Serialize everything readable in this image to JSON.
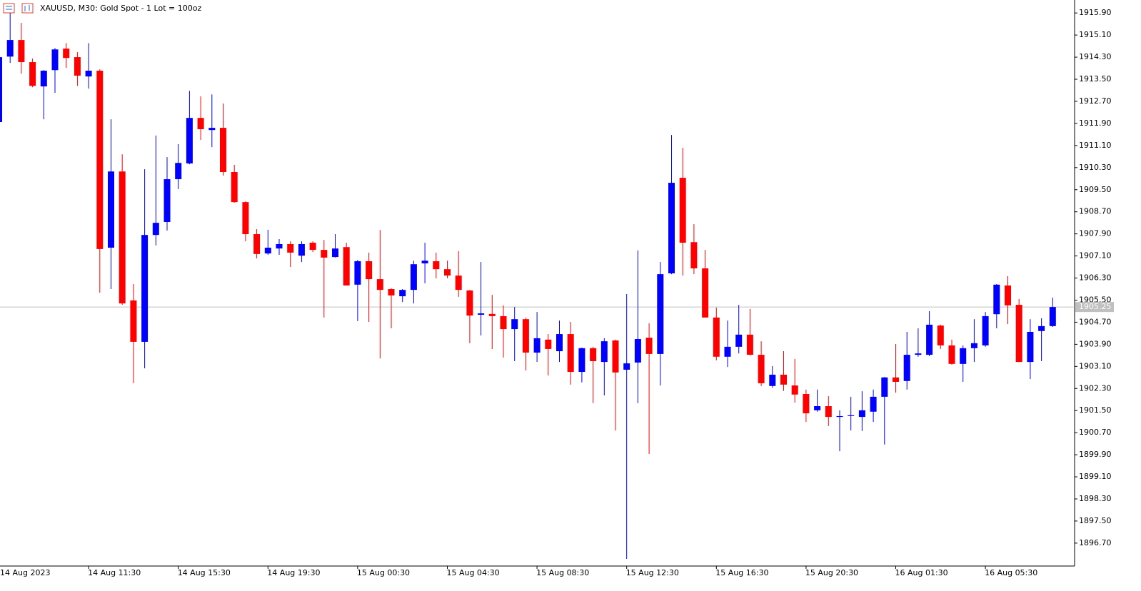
{
  "chart_data": {
    "type": "candlestick",
    "title": "XAUUSD, M30:  Gold Spot - 1 Lot = 100oz",
    "categories": [
      "14 Aug 2023",
      null,
      null,
      null,
      null,
      null,
      null,
      null,
      "14 Aug 11:30",
      null,
      null,
      null,
      null,
      null,
      null,
      null,
      "14 Aug 15:30",
      null,
      null,
      null,
      null,
      null,
      null,
      null,
      "14 Aug 19:30",
      null,
      null,
      null,
      null,
      null,
      null,
      null,
      "15 Aug 00:30",
      null,
      null,
      null,
      null,
      null,
      null,
      null,
      "15 Aug 04:30",
      null,
      null,
      null,
      null,
      null,
      null,
      null,
      "15 Aug 08:30",
      null,
      null,
      null,
      null,
      null,
      null,
      null,
      "15 Aug 12:30",
      null,
      null,
      null,
      null,
      null,
      null,
      null,
      "15 Aug 16:30",
      null,
      null,
      null,
      null,
      null,
      null,
      null,
      "15 Aug 20:30",
      null,
      null,
      null,
      null,
      null,
      null,
      null,
      "16 Aug 01:30",
      null,
      null,
      null,
      null,
      null,
      null,
      null,
      "16 Aug 05:30",
      null,
      null,
      null,
      null,
      null,
      null
    ],
    "open": [
      1911.95,
      1914.32,
      1914.92,
      1914.12,
      1913.24,
      1913.83,
      1914.61,
      1914.3,
      1913.6,
      1913.81,
      1907.4,
      1910.16,
      1905.49,
      1903.99,
      1907.86,
      1908.33,
      1909.88,
      1910.45,
      1912.1,
      1911.66,
      1911.74,
      1910.14,
      1909.05,
      1907.89,
      1907.19,
      1907.37,
      1907.53,
      1907.11,
      1907.58,
      1907.32,
      1907.06,
      1907.42,
      1906.06,
      1906.91,
      1906.26,
      1905.9,
      1905.64,
      1905.87,
      1906.83,
      1906.91,
      1906.62,
      1906.39,
      1905.85,
      1904.97,
      1905.0,
      1904.92,
      1904.45,
      1904.81,
      1903.6,
      1904.07,
      1903.65,
      1904.27,
      1902.9,
      1903.76,
      1903.26,
      1904.04,
      1902.98,
      1903.24,
      1904.14,
      1903.55,
      1906.47,
      1909.93,
      1907.6,
      1906.65,
      1904.87,
      1903.45,
      1903.81,
      1904.25,
      1903.52,
      1902.39,
      1902.8,
      1902.41,
      1902.1,
      1901.51,
      1901.66,
      1901.27,
      1901.3,
      1901.27,
      1901.46,
      1902.0,
      1902.7,
      1902.57,
      1903.52,
      1903.52,
      1904.58,
      1903.86,
      1903.19,
      1903.76,
      1903.86,
      1904.99,
      1906.03,
      1905.33,
      1903.26,
      1904.38,
      1904.56
    ],
    "high": [
      1914.3,
      1915.9,
      1915.54,
      1914.25,
      1913.83,
      1914.63,
      1914.81,
      1914.48,
      1914.81,
      1913.86,
      1912.05,
      1910.78,
      1906.08,
      1910.24,
      1911.46,
      1910.68,
      1911.15,
      1913.08,
      1912.88,
      1912.95,
      1912.62,
      1910.4,
      1909.08,
      1908.07,
      1908.05,
      1907.71,
      1907.63,
      1907.63,
      1907.63,
      1907.68,
      1907.89,
      1907.58,
      1906.96,
      1907.22,
      1908.04,
      1905.93,
      1905.9,
      1906.93,
      1907.58,
      1907.22,
      1906.93,
      1907.27,
      1905.87,
      1906.88,
      1905.69,
      1905.31,
      1905.25,
      1904.87,
      1905.07,
      1904.27,
      1904.76,
      1904.71,
      1903.78,
      1903.81,
      1904.12,
      1904.07,
      1905.72,
      1907.3,
      1904.66,
      1906.88,
      1911.48,
      1911.02,
      1908.25,
      1907.32,
      1905.23,
      1904.76,
      1905.33,
      1905.18,
      1904.01,
      1903.11,
      1903.65,
      1903.37,
      1902.26,
      1902.26,
      1902.02,
      1901.51,
      1902.0,
      1902.2,
      1902.26,
      1902.72,
      1903.91,
      1904.35,
      1904.48,
      1905.1,
      1904.61,
      1904.07,
      1903.86,
      1904.81,
      1905.07,
      1906.08,
      1906.37,
      1905.54,
      1904.81,
      1904.84,
      1905.59
    ],
    "low": [
      1911.95,
      1914.09,
      1913.7,
      1913.21,
      1912.05,
      1913.01,
      1913.91,
      1913.26,
      1913.16,
      1905.77,
      1905.9,
      1905.33,
      1902.49,
      1903.03,
      1907.48,
      1908.02,
      1909.52,
      1910.42,
      1911.3,
      1911.04,
      1910.01,
      1909.03,
      1907.63,
      1907.01,
      1907.14,
      1907.14,
      1906.7,
      1906.88,
      1907.24,
      1904.87,
      1907.04,
      1906.03,
      1904.74,
      1904.71,
      1903.39,
      1904.48,
      1905.43,
      1905.38,
      1906.11,
      1906.29,
      1906.29,
      1905.62,
      1903.94,
      1904.22,
      1903.73,
      1903.42,
      1903.29,
      1902.95,
      1903.26,
      1902.77,
      1903.26,
      1902.44,
      1902.52,
      1901.77,
      1902.05,
      1900.78,
      1896.13,
      1901.77,
      1899.93,
      1902.41,
      1906.44,
      1906.39,
      1906.44,
      1904.87,
      1903.32,
      1903.08,
      1903.57,
      1903.5,
      1902.39,
      1902.33,
      1902.21,
      1901.79,
      1901.09,
      1901.46,
      1900.94,
      1900.03,
      1900.78,
      1900.76,
      1901.09,
      1900.27,
      1902.15,
      1902.26,
      1903.45,
      1903.47,
      1903.73,
      1903.16,
      1902.54,
      1903.26,
      1903.81,
      1904.48,
      1904.63,
      1903.26,
      1902.64,
      1903.29,
      1904.53
    ],
    "close": [
      1914.3,
      1914.92,
      1914.12,
      1913.26,
      1913.81,
      1914.58,
      1914.27,
      1913.63,
      1913.81,
      1907.35,
      1910.16,
      1905.38,
      1903.99,
      1907.86,
      1908.3,
      1909.88,
      1910.47,
      1912.1,
      1911.69,
      1911.74,
      1910.14,
      1909.05,
      1907.89,
      1907.17,
      1907.4,
      1907.53,
      1907.22,
      1907.53,
      1907.32,
      1907.04,
      1907.37,
      1906.03,
      1906.91,
      1906.26,
      1905.87,
      1905.67,
      1905.87,
      1906.8,
      1906.93,
      1906.62,
      1906.39,
      1905.87,
      1904.94,
      1905.02,
      1904.92,
      1904.45,
      1904.81,
      1903.6,
      1904.12,
      1903.73,
      1904.27,
      1902.9,
      1903.76,
      1903.29,
      1904.01,
      1902.88,
      1903.21,
      1904.09,
      1903.55,
      1906.44,
      1909.75,
      1907.58,
      1906.65,
      1904.87,
      1903.45,
      1903.81,
      1904.25,
      1903.52,
      1902.49,
      1902.8,
      1902.44,
      1902.08,
      1901.4,
      1901.66,
      1901.27,
      1901.3,
      1901.33,
      1901.51,
      1902.0,
      1902.7,
      1902.54,
      1903.52,
      1903.57,
      1904.61,
      1903.86,
      1903.19,
      1903.76,
      1903.94,
      1904.92,
      1906.06,
      1905.31,
      1903.26,
      1904.35,
      1904.56,
      1905.25
    ],
    "up_color": "#0000ff",
    "down_color": "#ff0000",
    "last_price": 1905.25,
    "last_price_color": "#c0c0c0",
    "ylim": [
      1895.87,
      1916.37
    ],
    "yticks": [
      {
        "value": 1915.9,
        "label": "1915.90"
      },
      {
        "value": 1915.1,
        "label": "1915.10"
      },
      {
        "value": 1914.3,
        "label": "1914.30"
      },
      {
        "value": 1913.5,
        "label": "1913.50"
      },
      {
        "value": 1912.7,
        "label": "1912.70"
      },
      {
        "value": 1911.9,
        "label": "1911.90"
      },
      {
        "value": 1911.1,
        "label": "1911.10"
      },
      {
        "value": 1910.3,
        "label": "1910.30"
      },
      {
        "value": 1909.5,
        "label": "1909.50"
      },
      {
        "value": 1908.7,
        "label": "1908.70"
      },
      {
        "value": 1907.9,
        "label": "1907.90"
      },
      {
        "value": 1907.1,
        "label": "1907.10"
      },
      {
        "value": 1906.3,
        "label": "1906.30"
      },
      {
        "value": 1905.5,
        "label": "1905.50"
      },
      {
        "value": 1904.7,
        "label": "1904.70"
      },
      {
        "value": 1903.9,
        "label": "1903.90"
      },
      {
        "value": 1903.1,
        "label": "1903.10"
      },
      {
        "value": 1902.3,
        "label": "1902.30"
      },
      {
        "value": 1901.5,
        "label": "1901.50"
      },
      {
        "value": 1900.7,
        "label": "1900.70"
      },
      {
        "value": 1899.9,
        "label": "1899.90"
      },
      {
        "value": 1899.1,
        "label": "1899.10"
      },
      {
        "value": 1898.3,
        "label": "1898.30"
      },
      {
        "value": 1897.5,
        "label": "1897.50"
      },
      {
        "value": 1896.7,
        "label": "1896.70"
      }
    ],
    "grid": false
  }
}
